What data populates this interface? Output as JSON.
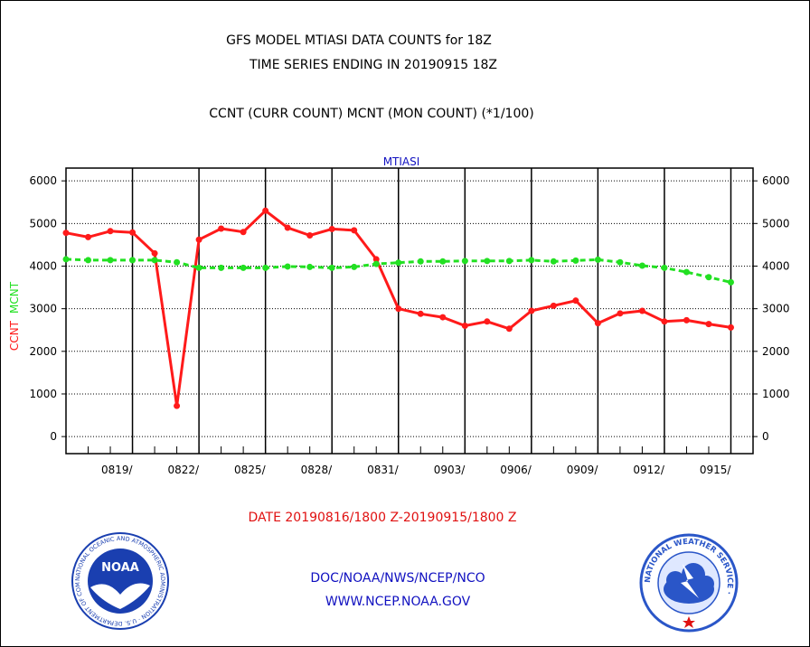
{
  "header": {
    "title_line1": "GFS MODEL MTIASI DATA COUNTS for 18Z",
    "title_line2": "TIME SERIES ENDING IN 20190915 18Z",
    "subtitle": "CCNT (CURR COUNT) MCNT (MON COUNT) (*1/100)"
  },
  "footer": {
    "date_range": "DATE 20190816/1800 Z-20190915/1800 Z",
    "org_line": "DOC/NOAA/NWS/NCEP/NCO",
    "url_line": "WWW.NCEP.NOAA.GOV"
  },
  "logos": {
    "noaa_text": "NOAA",
    "noaa_ring_text": "NATIONAL OCEANIC AND ATMOSPHERIC ADMINISTRATION · U.S. DEPARTMENT OF COMMERCE ·",
    "nws_ring_text": "NATIONAL WEATHER SERVICE ·"
  },
  "colors": {
    "ccnt": "#ff1a1a",
    "mcnt": "#22e022",
    "title_blue": "#1010c0",
    "noaa_blue": "#1a3fb0",
    "nws_blue": "#2a56c8"
  },
  "chart_data": {
    "type": "line",
    "title": "MTIASI",
    "ylabel_left": "CCNT",
    "ylabel_right": "MCNT",
    "yticks": [
      0,
      1000,
      2000,
      3000,
      4000,
      5000,
      6000
    ],
    "ylim": [
      -400,
      6300
    ],
    "xlim": [
      "2019-08-16",
      "2019-09-16"
    ],
    "xticks": [
      {
        "date": "2019-08-19",
        "label": "0819/"
      },
      {
        "date": "2019-08-22",
        "label": "0822/"
      },
      {
        "date": "2019-08-25",
        "label": "0825/"
      },
      {
        "date": "2019-08-28",
        "label": "0828/"
      },
      {
        "date": "2019-08-31",
        "label": "0831/"
      },
      {
        "date": "2019-09-03",
        "label": "0903/"
      },
      {
        "date": "2019-09-06",
        "label": "0906/"
      },
      {
        "date": "2019-09-09",
        "label": "0909/"
      },
      {
        "date": "2019-09-12",
        "label": "0912/"
      },
      {
        "date": "2019-09-15",
        "label": "0915/"
      }
    ],
    "x": [
      "2019-08-16",
      "2019-08-17",
      "2019-08-18",
      "2019-08-19",
      "2019-08-20",
      "2019-08-21",
      "2019-08-22",
      "2019-08-23",
      "2019-08-24",
      "2019-08-25",
      "2019-08-26",
      "2019-08-27",
      "2019-08-28",
      "2019-08-29",
      "2019-08-30",
      "2019-08-31",
      "2019-09-01",
      "2019-09-02",
      "2019-09-03",
      "2019-09-04",
      "2019-09-05",
      "2019-09-06",
      "2019-09-07",
      "2019-09-08",
      "2019-09-09",
      "2019-09-10",
      "2019-09-11",
      "2019-09-12",
      "2019-09-13",
      "2019-09-14",
      "2019-09-15",
      "2019-09-16"
    ],
    "grid": true,
    "series": [
      {
        "name": "CCNT",
        "style": "solid",
        "values": [
          4780,
          4680,
          4820,
          4790,
          4300,
          720,
          4620,
          4880,
          4800,
          5300,
          4900,
          4720,
          4870,
          4840,
          4160,
          3000,
          2880,
          2800,
          2600,
          2700,
          2530,
          2950,
          3070,
          3190,
          2660,
          2890,
          2950,
          2700,
          2730,
          2640,
          2560,
          null
        ]
      },
      {
        "name": "MCNT",
        "style": "dashed",
        "values": [
          4160,
          4140,
          4140,
          4140,
          4140,
          4090,
          3960,
          3960,
          3960,
          3960,
          3990,
          3980,
          3960,
          3980,
          4050,
          4080,
          4110,
          4110,
          4120,
          4120,
          4120,
          4140,
          4110,
          4130,
          4150,
          4090,
          4010,
          3960,
          3860,
          3740,
          3620,
          null
        ]
      }
    ]
  }
}
